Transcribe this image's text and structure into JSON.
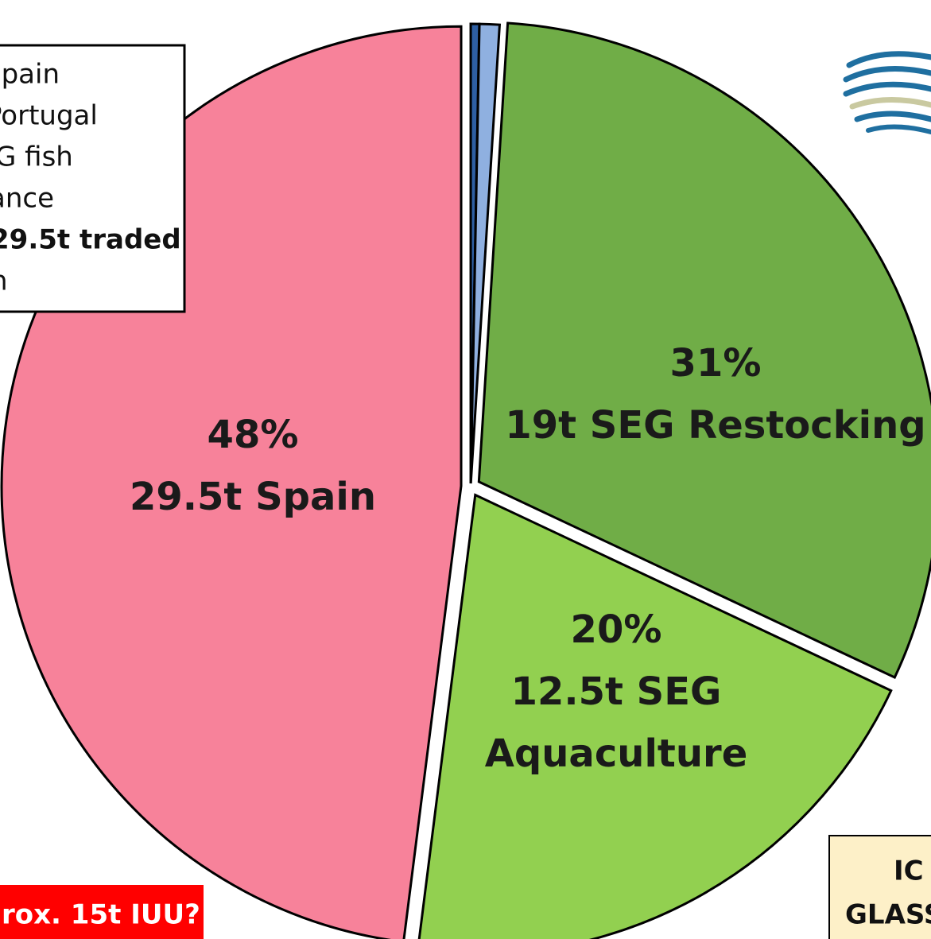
{
  "chart_data": {
    "type": "pie",
    "values": [
      0.3,
      0.7,
      31,
      20,
      48
    ],
    "colors": [
      "#2e5fa3",
      "#8fb0e0",
      "#70ad47",
      "#92d050",
      "#f7829a"
    ],
    "value_labels": [
      null,
      null,
      "31%",
      "20%",
      "48%"
    ],
    "slice_labels": [
      null,
      null,
      [
        "19t SEG Restocking"
      ],
      [
        "12.5t SEG",
        "Aquaculture"
      ],
      [
        "29.5t Spain"
      ]
    ],
    "legend_box": [
      "Spain",
      "Portugal",
      "G fish",
      "ance",
      "29.5t traded",
      "n"
    ],
    "annotations": [
      "rox. 15t IUU?"
    ],
    "side_box": [
      "IC",
      "GLASS"
    ]
  }
}
